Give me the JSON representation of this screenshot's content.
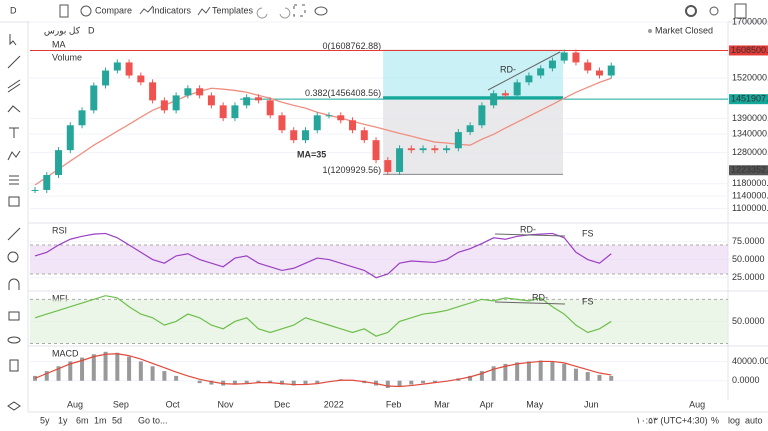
{
  "toolbar": {
    "interval": "D",
    "buttons": [
      "Compare",
      "Indicators",
      "Templates"
    ]
  },
  "legend": {
    "symbol": "کل بورس",
    "interval": "D",
    "studies": [
      "Volume"
    ]
  },
  "status": "Market Closed",
  "x_labels": [
    {
      "value": 3.4,
      "label": "Aug"
    },
    {
      "value": 7.3,
      "label": "Sep"
    },
    {
      "value": 11.7,
      "label": "Oct"
    },
    {
      "value": 16.2,
      "label": "Nov"
    },
    {
      "value": 21,
      "label": "Dec"
    },
    {
      "value": 25.4,
      "label": "2022"
    },
    {
      "value": 30.5,
      "label": "Feb"
    },
    {
      "value": 34.6,
      "label": "Mar"
    },
    {
      "value": 38.4,
      "label": "Apr"
    },
    {
      "value": 42.5,
      "label": "May"
    },
    {
      "value": 47.3,
      "label": "Jun"
    },
    {
      "value": 56.3,
      "label": "Aug"
    }
  ],
  "chart_data": [
    {
      "type": "candlestick",
      "up_color": "#26a69a",
      "down_color": "#ef5350",
      "series": [
        {
          "color": "#26a69a",
          "values": [
            1160000,
            1208000,
            1288000,
            1368000,
            1416000,
            1496000,
            1544000,
            1570000,
            1528000,
            1506000,
            1448000,
            1416000,
            1464000,
            1487000,
            1464000,
            1432000,
            1391000,
            1432000,
            1458000,
            1448000,
            1400000,
            1352000,
            1320000,
            1352000,
            1400000,
            1400000,
            1384000,
            1352000,
            1320000,
            1256000,
            1218000,
            1294000,
            1288000,
            1294000,
            1288000,
            1294000,
            1346000,
            1368000,
            1432000,
            1471000,
            1464000,
            1506000,
            1528000,
            1551000,
            1576000,
            1602000,
            1570000,
            1544000,
            1528000,
            1560000
          ]
        },
        {
          "name": "MA",
          "color": "#ef8f80",
          "values": [
            1176000,
            1201000,
            1227000,
            1253000,
            1278000,
            1304000,
            1326000,
            1349000,
            1371000,
            1394000,
            1416000,
            1432000,
            1448000,
            1464000,
            1477000,
            1487000,
            1484000,
            1480000,
            1474000,
            1464000,
            1455000,
            1442000,
            1432000,
            1423000,
            1410000,
            1400000,
            1391000,
            1381000,
            1371000,
            1362000,
            1352000,
            1342000,
            1333000,
            1323000,
            1314000,
            1311000,
            1307000,
            1304000,
            1323000,
            1339000,
            1359000,
            1378000,
            1397000,
            1416000,
            1435000,
            1455000,
            1474000,
            1490000,
            1506000,
            1519000
          ]
        }
      ],
      "ylim": [
        1057000,
        1700000
      ],
      "yticks": [
        {
          "value": 1700000,
          "label": "1700000.00"
        },
        {
          "value": 1520000,
          "label": "1520000.00"
        },
        {
          "value": 1390000,
          "label": "1390000.00"
        },
        {
          "value": 1340000,
          "label": "1340000.00"
        },
        {
          "value": 1280000,
          "label": "1280000.00"
        },
        {
          "value": 1180000,
          "label": "1180000.00"
        },
        {
          "value": 1140000,
          "label": "1140000.00"
        },
        {
          "value": 1100000,
          "label": "1100000.00"
        }
      ],
      "price_labels": [
        {
          "value": 1608500,
          "label": "1608500.00",
          "color": "#e53935"
        },
        {
          "value": 1451907.46,
          "label": "1451907.46",
          "color": "#14a89a"
        },
        {
          "value": 1223352.67,
          "label": "1223352.67",
          "color": "#555555"
        }
      ],
      "fib": {
        "start": 29.6,
        "end": 44.9,
        "levels": [
          {
            "value": 1608762.88,
            "label": "0(1608762.88)"
          },
          {
            "value": 1456408.56,
            "label": "0.382(1456408.56)"
          },
          {
            "value": 1209929.56,
            "label": "1(1209929.56)"
          }
        ]
      },
      "annotations": [
        "MA=35",
        "RD-"
      ]
    },
    {
      "type": "line",
      "title": "RSI",
      "color": "#9b3fc4",
      "band_color": "#e9d3f2",
      "values": [
        55,
        60,
        70,
        78,
        82,
        85,
        86,
        80,
        70,
        60,
        50,
        45,
        55,
        58,
        50,
        45,
        40,
        52,
        55,
        45,
        40,
        35,
        38,
        45,
        52,
        50,
        45,
        40,
        35,
        25,
        30,
        45,
        48,
        47,
        46,
        50,
        60,
        65,
        72,
        80,
        78,
        82,
        84,
        85,
        86,
        80,
        60,
        50,
        45,
        58
      ],
      "ylim": [
        8,
        99
      ],
      "yticks": [
        {
          "value": 75,
          "label": "75.0000"
        },
        {
          "value": 50,
          "label": "50.0000"
        },
        {
          "value": 25,
          "label": "25.0000"
        }
      ],
      "bands": [
        70,
        30
      ],
      "annotations": [
        "RD-",
        "FS"
      ]
    },
    {
      "type": "line",
      "title": "MFI",
      "color": "#6cbf4a",
      "band_color": "#dff0d8",
      "values": [
        55,
        60,
        65,
        70,
        75,
        80,
        85,
        82,
        70,
        60,
        55,
        45,
        50,
        60,
        55,
        45,
        40,
        50,
        55,
        40,
        35,
        40,
        45,
        55,
        50,
        45,
        40,
        35,
        40,
        30,
        35,
        50,
        55,
        60,
        62,
        65,
        70,
        75,
        80,
        78,
        82,
        80,
        78,
        82,
        70,
        60,
        45,
        35,
        40,
        50
      ],
      "ylim": [
        18,
        90
      ],
      "yticks": [
        {
          "value": 50,
          "label": "50.0000"
        }
      ],
      "bands": [
        80,
        20
      ],
      "annotations": [
        "RD-",
        "FS"
      ]
    },
    {
      "type": "bar",
      "title": "MACD",
      "color": "#555555",
      "line_color": "#e04a3a",
      "values": [
        10000,
        20000,
        30000,
        40000,
        48000,
        55000,
        60000,
        58000,
        50000,
        40000,
        30000,
        20000,
        10000,
        0,
        -5000,
        -8000,
        -10000,
        -8000,
        -5000,
        -3000,
        -5000,
        -8000,
        -10000,
        -8000,
        -5000,
        0,
        3000,
        0,
        -5000,
        -10000,
        -15000,
        -12000,
        -8000,
        -5000,
        -3000,
        0,
        5000,
        10000,
        20000,
        30000,
        35000,
        38000,
        40000,
        42000,
        40000,
        35000,
        25000,
        18000,
        12000,
        10000
      ],
      "line": [
        5000,
        15000,
        25000,
        35000,
        42000,
        50000,
        55000,
        56000,
        52000,
        45000,
        36000,
        27000,
        18000,
        10000,
        3000,
        -2000,
        -6000,
        -7000,
        -6000,
        -4000,
        -4000,
        -6000,
        -8000,
        -8000,
        -6000,
        -2000,
        1000,
        1000,
        -2000,
        -6000,
        -11000,
        -12000,
        -10000,
        -7000,
        -4000,
        -1000,
        3000,
        8000,
        15000,
        24000,
        30000,
        35000,
        38000,
        40000,
        40000,
        37000,
        30000,
        23000,
        16000,
        12000
      ],
      "ylim": [
        -40000,
        70000
      ],
      "yticks": [
        {
          "value": 40000,
          "label": "40000.0000"
        },
        {
          "value": 0,
          "label": "0.0000"
        }
      ]
    }
  ],
  "bottom": {
    "ranges": [
      "5y",
      "1y",
      "6m",
      "1m",
      "5d"
    ],
    "goto": "Go to...",
    "time": "۱۰:۵۳ (UTC+4:30)",
    "options": [
      "%",
      "log",
      "auto"
    ]
  }
}
